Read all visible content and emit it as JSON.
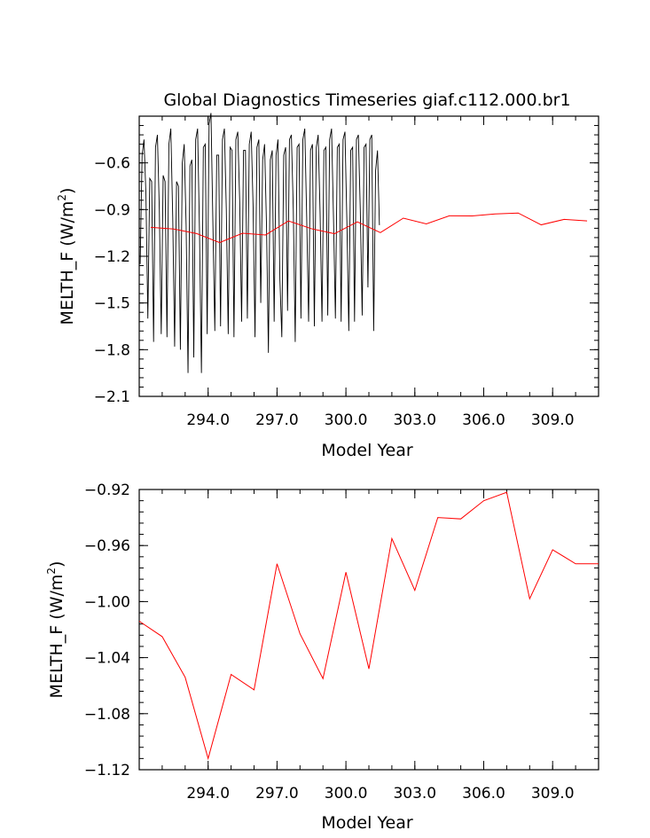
{
  "chart_data": [
    {
      "type": "line",
      "title": "Global Diagnostics Timeseries giaf.c112.000.br1",
      "xlabel": "Model Year",
      "ylabel": "MELTH_F (W/m",
      "ylabel_sup": "2",
      "ylabel_close": ")",
      "xlim": [
        291.0,
        311.0
      ],
      "ylim": [
        -2.1,
        -0.3
      ],
      "xticks": [
        294.0,
        297.0,
        300.0,
        303.0,
        306.0,
        309.0
      ],
      "xtick_labels": [
        "294.0",
        "297.0",
        "300.0",
        "303.0",
        "306.0",
        "309.0"
      ],
      "yticks": [
        -2.1,
        -1.8,
        -1.5,
        -1.2,
        -0.9,
        -0.6
      ],
      "ytick_labels": [
        "−2.1",
        "−1.8",
        "−1.5",
        "−1.2",
        "−0.9",
        "−0.6"
      ],
      "monthly": {
        "color": "#000000",
        "x_start": 291.042,
        "x_step": 0.08333,
        "values": [
          -1.25,
          -0.55,
          -0.45,
          -0.8,
          -1.6,
          -0.7,
          -0.72,
          -1.75,
          -0.5,
          -0.42,
          -0.9,
          -1.7,
          -0.68,
          -0.72,
          -1.72,
          -0.48,
          -0.38,
          -0.95,
          -1.78,
          -0.72,
          -0.75,
          -1.8,
          -0.6,
          -0.48,
          -1.0,
          -1.95,
          -0.62,
          -0.58,
          -1.85,
          -0.45,
          -0.38,
          -1.05,
          -1.95,
          -0.5,
          -0.48,
          -1.7,
          -0.35,
          -0.28,
          -1.0,
          -1.68,
          -0.55,
          -0.55,
          -1.65,
          -0.45,
          -0.38,
          -0.9,
          -1.7,
          -0.5,
          -0.52,
          -1.72,
          -0.45,
          -0.4,
          -0.85,
          -1.62,
          -0.52,
          -0.52,
          -1.6,
          -0.48,
          -0.4,
          -0.88,
          -1.72,
          -0.5,
          -0.45,
          -1.5,
          -0.58,
          -0.48,
          -1.0,
          -1.82,
          -0.58,
          -0.52,
          -1.62,
          -0.55,
          -0.45,
          -1.35,
          -1.72,
          -0.55,
          -0.5,
          -1.55,
          -0.45,
          -0.42,
          -0.9,
          -1.75,
          -0.5,
          -0.48,
          -1.6,
          -0.45,
          -0.38,
          -0.95,
          -1.62,
          -0.52,
          -0.48,
          -1.65,
          -0.5,
          -0.42,
          -0.92,
          -1.62,
          -0.52,
          -0.5,
          -1.58,
          -0.45,
          -0.38,
          -0.95,
          -1.6,
          -0.5,
          -0.48,
          -1.62,
          -0.45,
          -0.4,
          -0.98,
          -1.68,
          -0.52,
          -0.5,
          -1.62,
          -0.45,
          -0.42,
          -0.9,
          -1.58,
          -0.5,
          -0.48,
          -1.4,
          -0.45,
          -0.42,
          -1.68,
          -0.65,
          -0.52,
          -1.0
        ]
      },
      "annual": {
        "color": "#ff0000",
        "x": [
          291.5,
          292.5,
          293.5,
          294.5,
          295.5,
          296.5,
          297.5,
          298.5,
          299.5,
          300.5,
          301.5,
          302.5,
          303.5,
          304.5,
          305.5,
          306.5,
          307.5,
          308.5,
          309.5,
          310.5
        ],
        "values": [
          -1.014,
          -1.025,
          -1.054,
          -1.112,
          -1.052,
          -1.063,
          -0.973,
          -1.023,
          -1.055,
          -0.979,
          -1.048,
          -0.955,
          -0.992,
          -0.94,
          -0.941,
          -0.928,
          -0.922,
          -0.998,
          -0.963,
          -0.973
        ]
      }
    },
    {
      "type": "line",
      "title": "",
      "xlabel": "Model Year",
      "ylabel": "MELTH_F (W/m",
      "ylabel_sup": "2",
      "ylabel_close": ")",
      "xlim": [
        291.0,
        311.0
      ],
      "ylim": [
        -1.12,
        -0.92
      ],
      "xticks": [
        294.0,
        297.0,
        300.0,
        303.0,
        306.0,
        309.0
      ],
      "xtick_labels": [
        "294.0",
        "297.0",
        "300.0",
        "303.0",
        "306.0",
        "309.0"
      ],
      "yticks": [
        -1.12,
        -1.08,
        -1.04,
        -1.0,
        -0.96,
        -0.92
      ],
      "ytick_labels": [
        "−1.12",
        "−1.08",
        "−1.04",
        "−1.00",
        "−0.96",
        "−0.92"
      ],
      "annual": {
        "color": "#ff0000",
        "x": [
          291.0,
          292.0,
          293.0,
          294.0,
          295.0,
          296.0,
          297.0,
          298.0,
          299.0,
          300.0,
          301.0,
          302.0,
          303.0,
          304.0,
          305.0,
          306.0,
          307.0,
          308.0,
          309.0,
          310.0,
          311.0
        ],
        "values": [
          -1.014,
          -1.025,
          -1.054,
          -1.112,
          -1.052,
          -1.063,
          -0.973,
          -1.023,
          -1.055,
          -0.979,
          -1.048,
          -0.955,
          -0.992,
          -0.94,
          -0.941,
          -0.928,
          -0.922,
          -0.998,
          -0.963,
          -0.973,
          -0.973
        ]
      }
    }
  ]
}
